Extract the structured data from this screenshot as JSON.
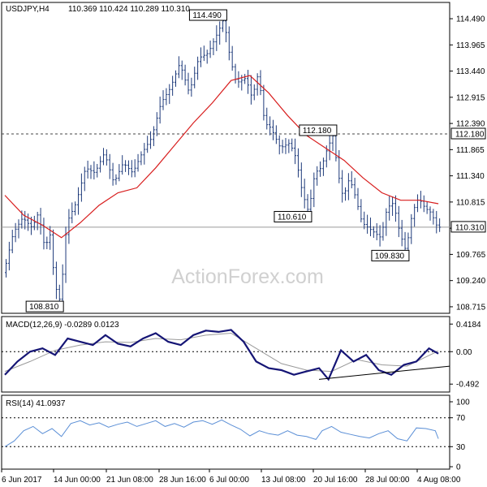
{
  "header": {
    "symbol": "USDJPY,H4",
    "ohlc": "110.369 110.424 110.289 110.310"
  },
  "watermark": "ActionForex.com",
  "colors": {
    "bar": "#1e3a7a",
    "ma": "#d81e1e",
    "macd": "#151575",
    "signal": "#9a9a9a",
    "rsi": "#5b8fd6",
    "level_line": "#444444",
    "current_line": "#9a9a9a",
    "trendline": "#000000",
    "watermark": "#d0d0d0"
  },
  "chart_data": [
    {
      "type": "ohlc",
      "name": "price",
      "yticks": [
        "114.490",
        "113.965",
        "113.440",
        "112.915",
        "112.390",
        "111.865",
        "111.340",
        "110.815",
        "110.290",
        "109.765",
        "109.240",
        "108.715"
      ],
      "ylim": [
        108.6,
        114.8
      ],
      "level_line": {
        "value": 112.18,
        "label": "112.180"
      },
      "current_price": {
        "value": 110.31,
        "label": "110.310"
      },
      "annotations": [
        {
          "text": "114.490",
          "value": 114.49,
          "anchor": "top"
        },
        {
          "text": "112.180",
          "value": 112.18,
          "anchor": "top"
        },
        {
          "text": "110.610",
          "value": 110.61,
          "anchor": "bottom"
        },
        {
          "text": "109.830",
          "value": 109.83,
          "anchor": "bottom"
        },
        {
          "text": "108.810",
          "value": 108.81,
          "anchor": "bottom"
        }
      ],
      "path_points": [
        [
          0,
          109.4
        ],
        [
          3,
          110.2
        ],
        [
          6,
          110.5
        ],
        [
          9,
          110.3
        ],
        [
          11,
          110.6
        ],
        [
          13,
          109.9
        ],
        [
          15,
          110.2
        ],
        [
          16,
          109.2
        ],
        [
          18,
          108.81
        ],
        [
          20,
          110.4
        ],
        [
          23,
          110.8
        ],
        [
          26,
          111.5
        ],
        [
          29,
          111.4
        ],
        [
          32,
          111.8
        ],
        [
          35,
          111.2
        ],
        [
          38,
          111.6
        ],
        [
          41,
          111.4
        ],
        [
          44,
          111.8
        ],
        [
          47,
          112.1
        ],
        [
          50,
          112.8
        ],
        [
          53,
          113.1
        ],
        [
          56,
          113.6
        ],
        [
          59,
          113.0
        ],
        [
          62,
          113.7
        ],
        [
          65,
          113.8
        ],
        [
          68,
          114.2
        ],
        [
          70,
          114.49
        ],
        [
          72,
          113.7
        ],
        [
          74,
          113.2
        ],
        [
          77,
          113.3
        ],
        [
          79,
          112.9
        ],
        [
          81,
          113.4
        ],
        [
          83,
          112.4
        ],
        [
          85,
          112.3
        ],
        [
          88,
          111.9
        ],
        [
          91,
          112.0
        ],
        [
          93,
          111.7
        ],
        [
          95,
          111.0
        ],
        [
          97,
          110.61
        ],
        [
          99,
          111.4
        ],
        [
          101,
          111.5
        ],
        [
          103,
          111.9
        ],
        [
          105,
          112.18
        ],
        [
          106,
          111.5
        ],
        [
          108,
          110.9
        ],
        [
          110,
          111.3
        ],
        [
          112,
          110.9
        ],
        [
          114,
          110.4
        ],
        [
          116,
          110.3
        ],
        [
          118,
          110.2
        ],
        [
          120,
          110.1
        ],
        [
          122,
          110.7
        ],
        [
          124,
          110.8
        ],
        [
          126,
          110.2
        ],
        [
          128,
          109.83
        ],
        [
          130,
          110.6
        ],
        [
          132,
          110.9
        ],
        [
          134,
          110.7
        ],
        [
          136,
          110.6
        ],
        [
          138,
          110.31
        ]
      ],
      "ma_path": [
        [
          0,
          110.95
        ],
        [
          6,
          110.55
        ],
        [
          12,
          110.35
        ],
        [
          18,
          110.1
        ],
        [
          24,
          110.4
        ],
        [
          30,
          110.75
        ],
        [
          36,
          111.0
        ],
        [
          42,
          111.1
        ],
        [
          48,
          111.5
        ],
        [
          54,
          111.95
        ],
        [
          60,
          112.4
        ],
        [
          66,
          112.8
        ],
        [
          72,
          113.25
        ],
        [
          78,
          113.35
        ],
        [
          84,
          113.0
        ],
        [
          90,
          112.55
        ],
        [
          96,
          112.15
        ],
        [
          102,
          111.9
        ],
        [
          108,
          111.65
        ],
        [
          114,
          111.3
        ],
        [
          120,
          111.0
        ],
        [
          126,
          110.85
        ],
        [
          132,
          110.85
        ],
        [
          138,
          110.78
        ]
      ]
    },
    {
      "type": "line",
      "name": "MACD",
      "label": "MACD(12,26,9) -0.0289 0.0123",
      "yticks": [
        "0.4184",
        "0.00",
        "-0.492"
      ],
      "ylim": [
        -0.6,
        0.52
      ],
      "series": [
        {
          "values": [
            [
              0,
              -0.35
            ],
            [
              4,
              -0.15
            ],
            [
              8,
              0.0
            ],
            [
              12,
              0.05
            ],
            [
              16,
              -0.05
            ],
            [
              20,
              0.2
            ],
            [
              24,
              0.15
            ],
            [
              28,
              0.1
            ],
            [
              32,
              0.25
            ],
            [
              36,
              0.12
            ],
            [
              40,
              0.08
            ],
            [
              44,
              0.2
            ],
            [
              48,
              0.28
            ],
            [
              52,
              0.15
            ],
            [
              56,
              0.1
            ],
            [
              60,
              0.25
            ],
            [
              64,
              0.32
            ],
            [
              68,
              0.3
            ],
            [
              72,
              0.33
            ],
            [
              76,
              0.15
            ],
            [
              80,
              -0.15
            ],
            [
              84,
              -0.25
            ],
            [
              88,
              -0.28
            ],
            [
              92,
              -0.35
            ],
            [
              96,
              -0.3
            ],
            [
              100,
              -0.25
            ],
            [
              103,
              -0.42
            ],
            [
              107,
              0.02
            ],
            [
              111,
              -0.15
            ],
            [
              115,
              -0.05
            ],
            [
              119,
              -0.28
            ],
            [
              123,
              -0.35
            ],
            [
              127,
              -0.2
            ],
            [
              131,
              -0.15
            ],
            [
              135,
              0.05
            ],
            [
              138,
              -0.03
            ]
          ]
        },
        {
          "values": [
            [
              0,
              -0.3
            ],
            [
              8,
              -0.15
            ],
            [
              16,
              0.02
            ],
            [
              24,
              0.1
            ],
            [
              32,
              0.15
            ],
            [
              40,
              0.14
            ],
            [
              48,
              0.2
            ],
            [
              56,
              0.18
            ],
            [
              64,
              0.25
            ],
            [
              72,
              0.28
            ],
            [
              80,
              0.05
            ],
            [
              88,
              -0.18
            ],
            [
              96,
              -0.28
            ],
            [
              104,
              -0.3
            ],
            [
              112,
              -0.12
            ],
            [
              120,
              -0.2
            ],
            [
              128,
              -0.22
            ],
            [
              134,
              -0.08
            ],
            [
              138,
              0.01
            ]
          ]
        }
      ],
      "zero_line": 0,
      "trendline": [
        [
          100,
          -0.42
        ],
        [
          138,
          -0.22
        ]
      ]
    },
    {
      "type": "line",
      "name": "RSI",
      "label": "RSI(14) 41.0937",
      "yticks": [
        "100",
        "70",
        "30",
        "0"
      ],
      "ylim": [
        0,
        100
      ],
      "guides": [
        70,
        30
      ],
      "series": [
        {
          "values": [
            [
              0,
              30
            ],
            [
              3,
              38
            ],
            [
              6,
              52
            ],
            [
              9,
              58
            ],
            [
              12,
              48
            ],
            [
              15,
              55
            ],
            [
              18,
              44
            ],
            [
              21,
              62
            ],
            [
              24,
              66
            ],
            [
              27,
              60
            ],
            [
              30,
              63
            ],
            [
              33,
              57
            ],
            [
              36,
              61
            ],
            [
              39,
              64
            ],
            [
              42,
              58
            ],
            [
              45,
              62
            ],
            [
              48,
              66
            ],
            [
              51,
              58
            ],
            [
              54,
              62
            ],
            [
              57,
              57
            ],
            [
              60,
              64
            ],
            [
              63,
              66
            ],
            [
              66,
              61
            ],
            [
              69,
              67
            ],
            [
              72,
              60
            ],
            [
              75,
              54
            ],
            [
              78,
              45
            ],
            [
              81,
              52
            ],
            [
              84,
              48
            ],
            [
              87,
              46
            ],
            [
              90,
              52
            ],
            [
              93,
              46
            ],
            [
              96,
              44
            ],
            [
              99,
              40
            ],
            [
              101,
              52
            ],
            [
              104,
              58
            ],
            [
              107,
              50
            ],
            [
              110,
              47
            ],
            [
              113,
              44
            ],
            [
              116,
              42
            ],
            [
              119,
              48
            ],
            [
              122,
              52
            ],
            [
              125,
              41
            ],
            [
              128,
              38
            ],
            [
              131,
              56
            ],
            [
              134,
              55
            ],
            [
              137,
              52
            ],
            [
              138,
              41
            ]
          ]
        }
      ]
    }
  ],
  "x_axis": {
    "labels": [
      "6 Jun 2017",
      "14 Jun 00:00",
      "21 Jun 08:00",
      "28 Jun 16:00",
      "6 Jul 00:00",
      "13 Jul 08:00",
      "20 Jul 16:00",
      "28 Jul 00:00",
      "4 Aug 08:00"
    ]
  }
}
